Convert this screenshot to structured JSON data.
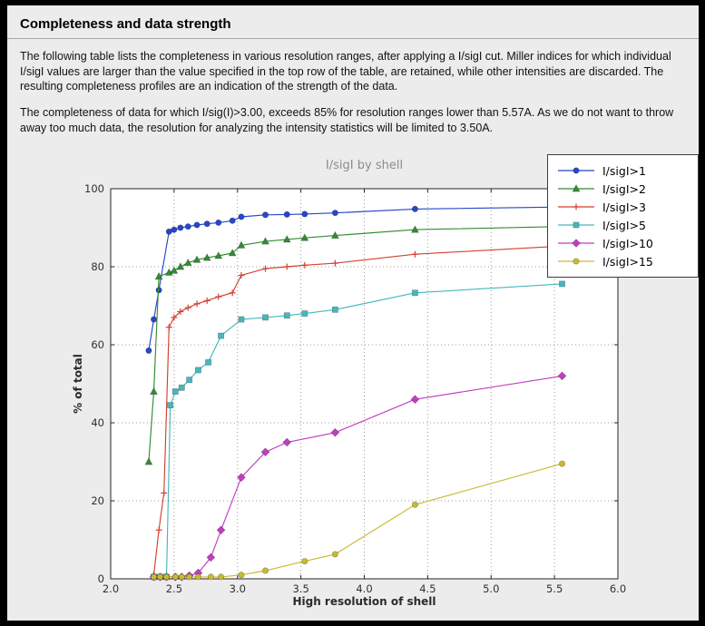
{
  "header": {
    "title": "Completeness and data strength"
  },
  "body": {
    "paragraph1": "The following table lists the completeness in various resolution ranges, after applying a I/sigI cut. Miller indices for which individual I/sigI values are larger than the value specified in the top row of the table, are retained, while other intensities are discarded. The resulting completeness profiles are an indication of the strength of the data.",
    "paragraph2": "The completeness of data for which I/sig(I)>3.00, exceeds  85% for resolution ranges lower than 5.57A. As we do not want to throw away too much data, the resolution for analyzing the intensity statistics will be limited to 3.50A."
  },
  "chart_data": {
    "type": "line",
    "title": "I/sigI by shell",
    "xlabel": "High resolution of shell",
    "ylabel": "% of total",
    "xlim": [
      2.0,
      6.0
    ],
    "ylim": [
      0,
      100
    ],
    "xticks": [
      2.0,
      2.5,
      3.0,
      3.5,
      4.0,
      4.5,
      5.0,
      5.5,
      6.0
    ],
    "xtick_labels": [
      "2.0",
      "2.5",
      "3.0",
      "3.5",
      "4.0",
      "4.5",
      "5.0",
      "5.5",
      "6.0"
    ],
    "yticks": [
      0,
      20,
      40,
      60,
      80,
      100
    ],
    "ytick_labels": [
      "0",
      "20",
      "40",
      "60",
      "80",
      "100"
    ],
    "grid": true,
    "legend_position": "upper right",
    "plot_bg": "#ffffff",
    "grid_color": "#9c9c9c",
    "frame_color": "#262626",
    "series": [
      {
        "name": "I/sigI>1",
        "color": "#2846cb",
        "marker": "circle",
        "x": [
          2.3,
          2.34,
          2.38,
          2.46,
          2.5,
          2.55,
          2.61,
          2.68,
          2.76,
          2.85,
          2.96,
          3.03,
          3.22,
          3.39,
          3.53,
          3.77,
          4.4,
          5.56,
          5.95
        ],
        "y": [
          58.5,
          66.5,
          74.0,
          89.0,
          89.5,
          90.0,
          90.3,
          90.7,
          91.0,
          91.3,
          91.8,
          92.8,
          93.3,
          93.4,
          93.5,
          93.8,
          94.8,
          95.3,
          95.6
        ]
      },
      {
        "name": "I/sigI>2",
        "color": "#348c34",
        "marker": "triangle",
        "x": [
          2.3,
          2.34,
          2.38,
          2.46,
          2.5,
          2.55,
          2.61,
          2.68,
          2.76,
          2.85,
          2.96,
          3.03,
          3.22,
          3.39,
          3.53,
          3.77,
          4.4,
          5.56,
          5.95
        ],
        "y": [
          30.0,
          48.0,
          77.5,
          78.5,
          79.0,
          80.0,
          81.0,
          81.8,
          82.3,
          82.8,
          83.5,
          85.5,
          86.5,
          87.0,
          87.4,
          88.0,
          89.5,
          90.3,
          90.6
        ]
      },
      {
        "name": "I/sigI>3",
        "color": "#d43f30",
        "marker": "plus",
        "x": [
          2.34,
          2.38,
          2.42,
          2.46,
          2.5,
          2.55,
          2.61,
          2.68,
          2.76,
          2.85,
          2.96,
          3.03,
          3.22,
          3.39,
          3.53,
          3.77,
          4.4,
          5.56,
          5.95
        ],
        "y": [
          1.0,
          12.5,
          22.0,
          64.5,
          67.0,
          68.5,
          69.5,
          70.5,
          71.3,
          72.3,
          73.3,
          77.8,
          79.5,
          80.0,
          80.4,
          80.9,
          83.2,
          85.3,
          85.6
        ]
      },
      {
        "name": "I/sigI>5",
        "color": "#46b8bd",
        "marker": "square",
        "x": [
          2.34,
          2.39,
          2.44,
          2.47,
          2.51,
          2.56,
          2.62,
          2.69,
          2.77,
          2.87,
          3.03,
          3.22,
          3.39,
          3.53,
          3.77,
          4.4,
          5.56
        ],
        "y": [
          0.5,
          0.5,
          0.5,
          44.5,
          48.0,
          49.0,
          51.0,
          53.5,
          55.5,
          62.3,
          66.5,
          67.0,
          67.5,
          68.0,
          69.0,
          73.3,
          75.6
        ]
      },
      {
        "name": "I/sigI>10",
        "color": "#c13ec1",
        "marker": "diamond",
        "x": [
          2.34,
          2.39,
          2.44,
          2.51,
          2.56,
          2.62,
          2.69,
          2.79,
          2.87,
          3.03,
          3.22,
          3.39,
          3.77,
          4.4,
          5.56
        ],
        "y": [
          0.5,
          0.5,
          0.5,
          0.5,
          0.5,
          0.8,
          1.5,
          5.5,
          12.5,
          26.0,
          32.5,
          35.0,
          37.5,
          46.0,
          52.0
        ]
      },
      {
        "name": "I/sigI>15",
        "color": "#c8ba33",
        "marker": "circle",
        "x": [
          2.34,
          2.39,
          2.44,
          2.51,
          2.56,
          2.62,
          2.69,
          2.79,
          2.87,
          3.03,
          3.22,
          3.53,
          3.77,
          4.4,
          5.56
        ],
        "y": [
          0.5,
          0.5,
          0.5,
          0.5,
          0.5,
          0.5,
          0.5,
          0.5,
          0.5,
          1.0,
          2.1,
          4.5,
          6.3,
          19.0,
          29.5
        ]
      }
    ]
  }
}
